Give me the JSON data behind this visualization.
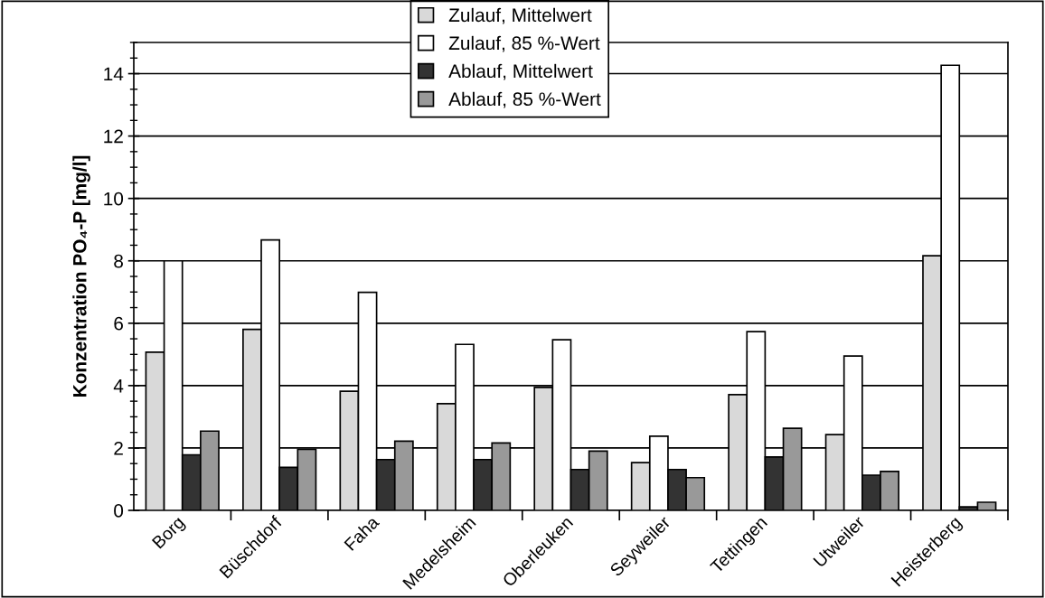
{
  "chart_data": {
    "type": "bar",
    "ylabel": "Konzentration PO₄-P [mg/l]",
    "categories": [
      "Borg",
      "Büschdorf",
      "Faha",
      "Medelsheim",
      "Oberleuken",
      "Seyweiler",
      "Tettingen",
      "Utweiler",
      "Heisterberg"
    ],
    "series": [
      {
        "name": "Zulauf, Mittelwert",
        "color": "#d9d9d9",
        "values": [
          5.07,
          5.8,
          3.82,
          3.42,
          3.94,
          1.53,
          3.71,
          2.43,
          8.16
        ]
      },
      {
        "name": "Zulauf, 85 %-Wert",
        "color": "#ffffff",
        "values": [
          8.0,
          8.67,
          6.99,
          5.32,
          5.47,
          2.38,
          5.73,
          4.95,
          14.27
        ]
      },
      {
        "name": "Ablauf, Mittelwert",
        "color": "#333333",
        "values": [
          1.78,
          1.38,
          1.63,
          1.63,
          1.31,
          1.31,
          1.71,
          1.13,
          0.11
        ]
      },
      {
        "name": "Ablauf, 85 %-Wert",
        "color": "#999999",
        "values": [
          2.54,
          1.96,
          2.22,
          2.16,
          1.9,
          1.05,
          2.63,
          1.25,
          0.26
        ]
      }
    ],
    "ylim": [
      0,
      15
    ],
    "yticks": [
      0,
      2,
      4,
      6,
      8,
      10,
      12,
      14
    ],
    "grid": "y",
    "legend": "top"
  }
}
